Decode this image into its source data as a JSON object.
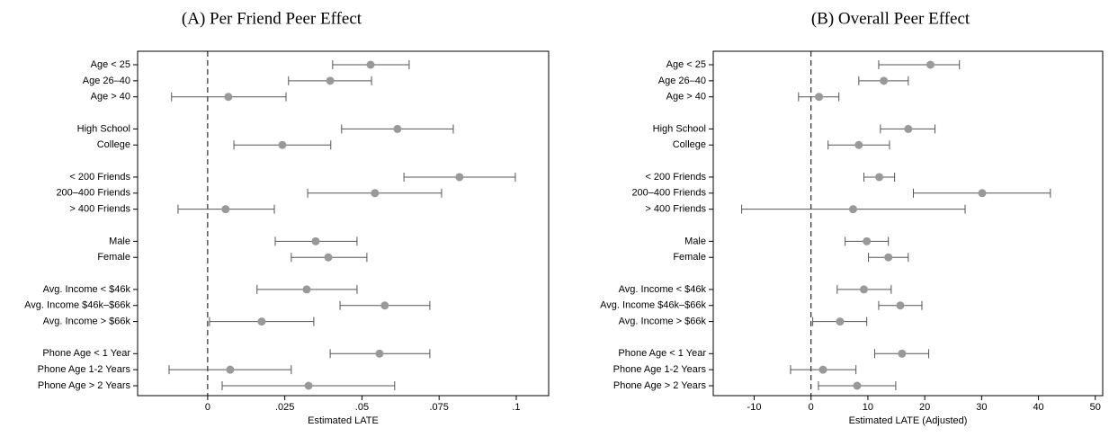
{
  "chart_data": [
    {
      "type": "coefplot",
      "title": "(A)  Per Friend Peer Effect",
      "x_label": "Estimated LATE",
      "color": "#999999",
      "bar_color": "#555555",
      "categories": [
        "Age < 25",
        "Age 26–40",
        "Age > 40",
        null,
        "High School",
        "College",
        null,
        "< 200 Friends",
        "200–400 Friends",
        "> 400 Friends",
        null,
        "Male",
        "Female",
        null,
        "Avg. Income < $46k",
        "Avg. Income $46k–$66k",
        "Avg. Income > $66k",
        null,
        "Phone Age < 1 Year",
        "Phone Age 1-2 Years",
        "Phone Age > 2 Years"
      ],
      "values": [
        0.0528,
        0.0397,
        0.0067,
        null,
        0.0615,
        0.0242,
        null,
        0.0816,
        0.0542,
        0.0058,
        null,
        0.035,
        0.0391,
        null,
        0.0321,
        0.0574,
        0.0175,
        null,
        0.0557,
        0.0073,
        0.0327
      ],
      "ci_low": [
        0.0405,
        0.0262,
        -0.0117,
        null,
        0.0434,
        0.0085,
        null,
        0.0636,
        0.0324,
        -0.0096,
        null,
        0.0219,
        0.0271,
        null,
        0.016,
        0.0429,
        0.0006,
        null,
        0.0397,
        -0.0125,
        0.0047
      ],
      "ci_high": [
        0.0653,
        0.0531,
        0.0254,
        null,
        0.0796,
        0.0399,
        null,
        0.0997,
        0.0758,
        0.0216,
        null,
        0.0484,
        0.0516,
        null,
        0.0484,
        0.072,
        0.0344,
        null,
        0.072,
        0.0271,
        0.0606
      ],
      "xlim": [
        -0.0227,
        0.1105
      ],
      "xticks": [
        0,
        {
          "value": 0.025,
          "label": ".025"
        },
        {
          "value": 0.05,
          "label": ".05"
        },
        {
          "value": 0.075,
          "label": ".075"
        },
        {
          "value": 0.1,
          "label": ".1"
        }
      ],
      "reference_line": 0
    },
    {
      "type": "coefplot",
      "title": "(B)  Overall Peer Effect",
      "x_label": "Estimated LATE (Adjusted)",
      "color": "#999999",
      "bar_color": "#555555",
      "categories": [
        "Age < 25",
        "Age 26–40",
        "Age > 40",
        null,
        "High School",
        "College",
        null,
        "< 200 Friends",
        "200–400 Friends",
        "> 400 Friends",
        null,
        "Male",
        "Female",
        null,
        "Avg. Income < $46k",
        "Avg. Income $46k–$66k",
        "Avg. Income > $66k",
        null,
        "Phone Age < 1 Year",
        "Phone Age 1-2 Years",
        "Phone Age > 2 Years"
      ],
      "values": [
        21.0,
        12.8,
        1.4,
        null,
        17.1,
        8.4,
        null,
        12.0,
        30.1,
        7.4,
        null,
        9.8,
        13.6,
        null,
        9.3,
        15.7,
        5.1,
        null,
        16.0,
        2.1,
        8.1
      ],
      "ci_low": [
        11.9,
        8.4,
        -2.2,
        null,
        12.2,
        3.0,
        null,
        9.3,
        18.0,
        -12.2,
        null,
        6.0,
        10.1,
        null,
        4.6,
        11.9,
        0.3,
        null,
        11.2,
        -3.6,
        1.3
      ],
      "ci_high": [
        26.1,
        17.1,
        4.9,
        null,
        21.8,
        13.8,
        null,
        14.7,
        42.1,
        27.1,
        null,
        13.6,
        17.1,
        null,
        14.1,
        19.5,
        9.8,
        null,
        20.7,
        7.9,
        14.9
      ],
      "xlim": [
        -17.2,
        51.3
      ],
      "xticks": [
        -10,
        0,
        10,
        20,
        30,
        40,
        50
      ],
      "reference_line": 0
    }
  ]
}
